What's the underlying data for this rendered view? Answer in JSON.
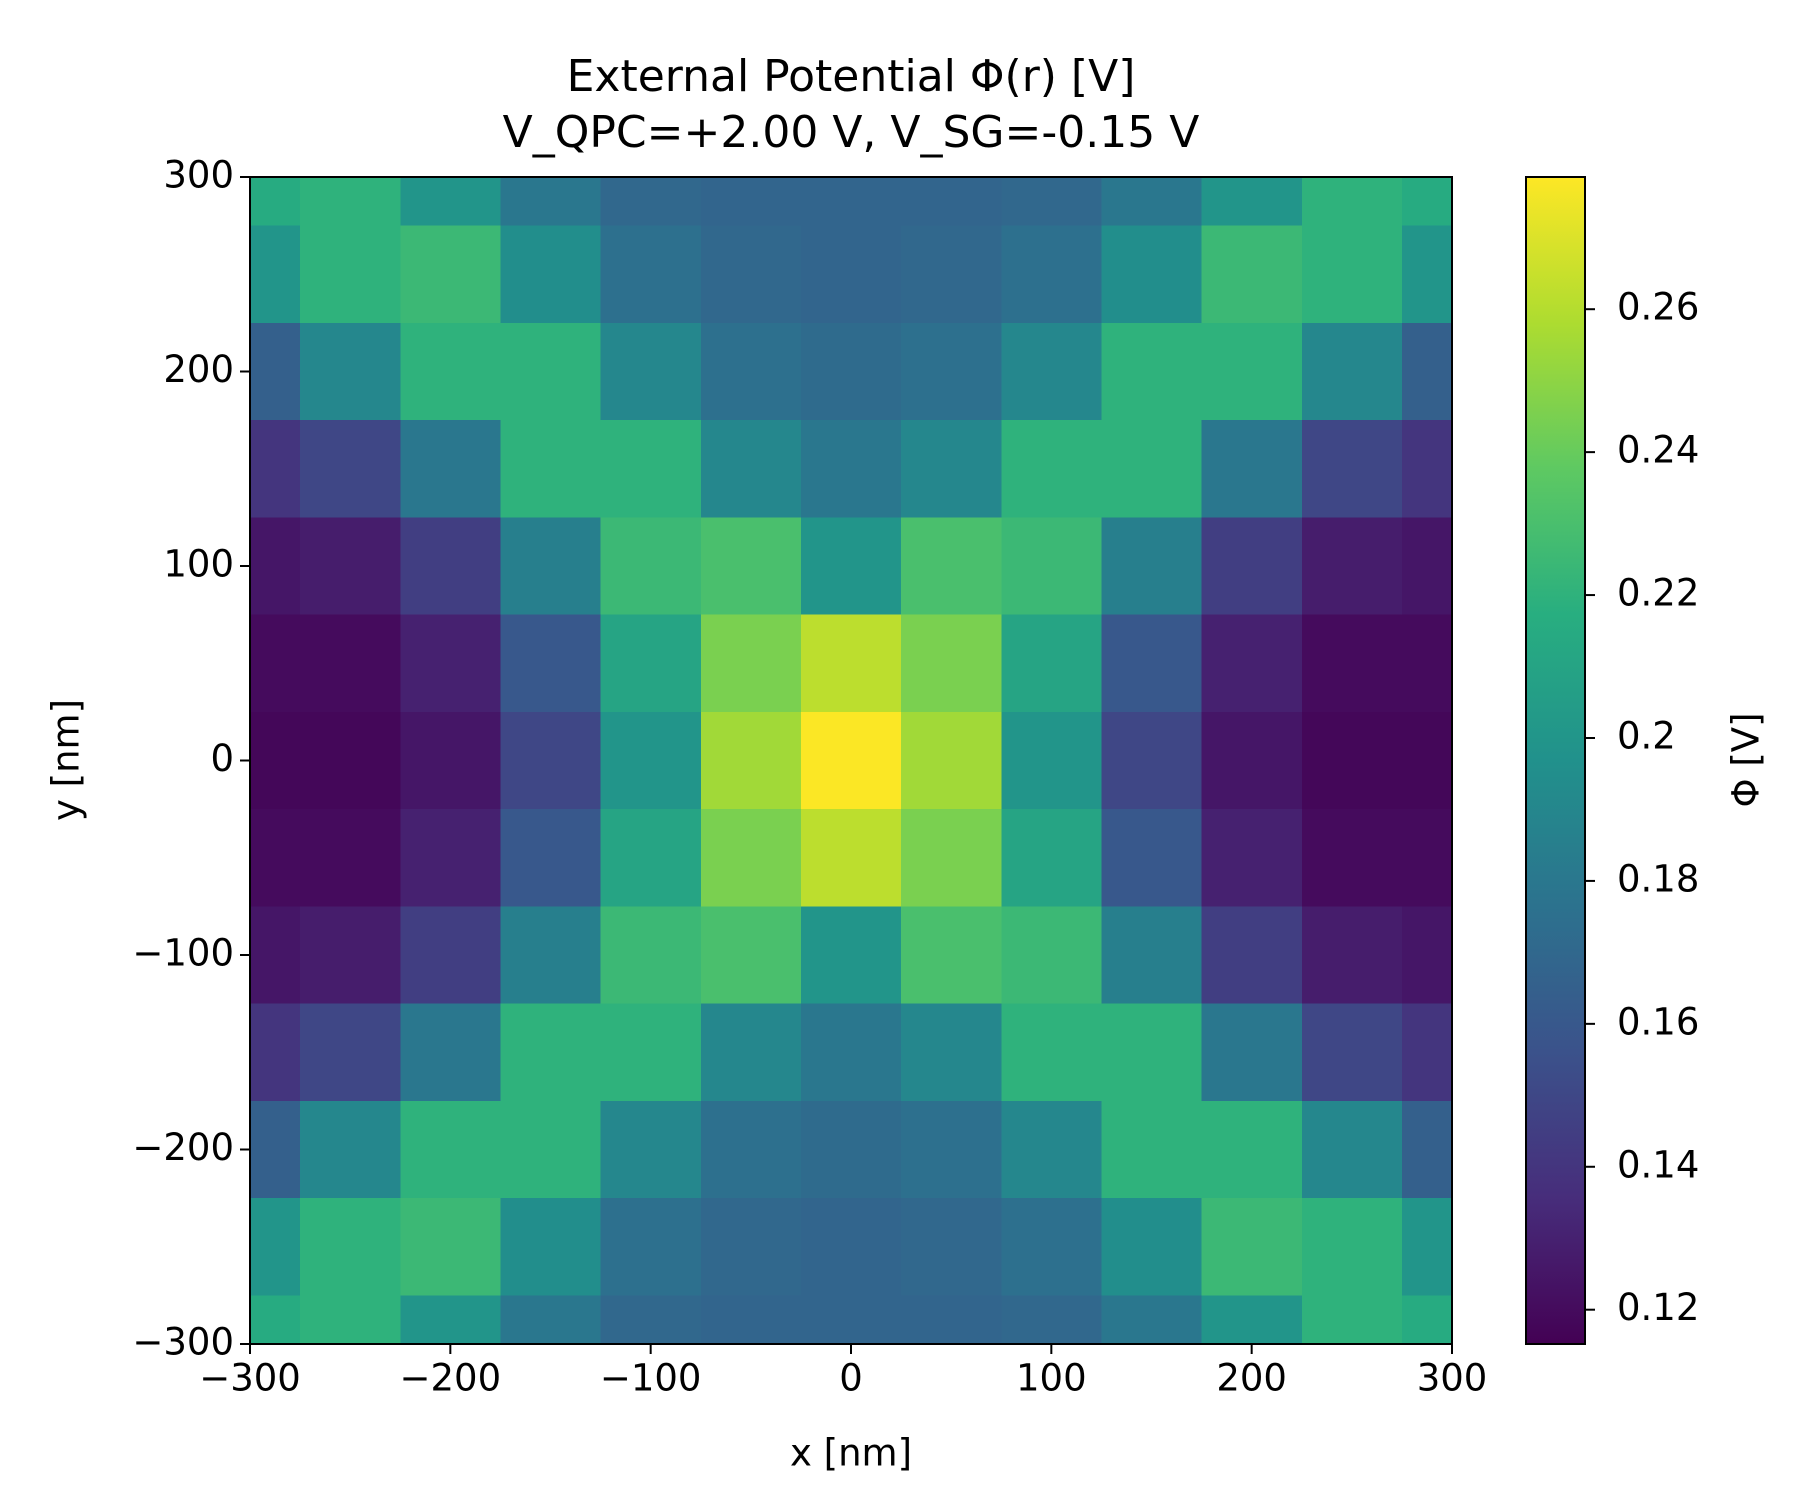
{
  "chart_data": {
    "type": "heatmap",
    "title": "External Potential Φ(r) [V]",
    "subtitle": "V_QPC=+2.00 V, V_SG=-0.15 V",
    "x_label": "x [nm]",
    "y_label": "y [nm]",
    "colorbar_label": "Φ [V]",
    "x": [
      -300,
      -250,
      -200,
      -150,
      -100,
      -50,
      0,
      50,
      100,
      150,
      200,
      250,
      300
    ],
    "y": [
      300,
      250,
      200,
      150,
      100,
      50,
      0,
      -50,
      -100,
      -150,
      -200,
      -250,
      -300
    ],
    "z": [
      [
        0.215,
        0.22,
        0.2,
        0.18,
        0.17,
        0.168,
        0.168,
        0.168,
        0.17,
        0.18,
        0.2,
        0.22,
        0.215
      ],
      [
        0.2,
        0.22,
        0.225,
        0.195,
        0.175,
        0.17,
        0.168,
        0.17,
        0.175,
        0.195,
        0.225,
        0.22,
        0.2
      ],
      [
        0.165,
        0.19,
        0.22,
        0.22,
        0.19,
        0.175,
        0.172,
        0.175,
        0.19,
        0.22,
        0.22,
        0.19,
        0.165
      ],
      [
        0.14,
        0.15,
        0.18,
        0.22,
        0.22,
        0.19,
        0.18,
        0.19,
        0.22,
        0.22,
        0.18,
        0.15,
        0.14
      ],
      [
        0.125,
        0.128,
        0.145,
        0.185,
        0.225,
        0.23,
        0.2,
        0.23,
        0.225,
        0.185,
        0.145,
        0.128,
        0.125
      ],
      [
        0.12,
        0.12,
        0.13,
        0.16,
        0.21,
        0.245,
        0.262,
        0.245,
        0.21,
        0.16,
        0.13,
        0.12,
        0.12
      ],
      [
        0.118,
        0.118,
        0.125,
        0.15,
        0.2,
        0.255,
        0.278,
        0.255,
        0.2,
        0.15,
        0.125,
        0.118,
        0.118
      ],
      [
        0.12,
        0.12,
        0.13,
        0.16,
        0.21,
        0.245,
        0.262,
        0.245,
        0.21,
        0.16,
        0.13,
        0.12,
        0.12
      ],
      [
        0.125,
        0.128,
        0.145,
        0.185,
        0.225,
        0.23,
        0.2,
        0.23,
        0.225,
        0.185,
        0.145,
        0.128,
        0.125
      ],
      [
        0.14,
        0.15,
        0.18,
        0.22,
        0.22,
        0.19,
        0.18,
        0.19,
        0.22,
        0.22,
        0.18,
        0.15,
        0.14
      ],
      [
        0.165,
        0.19,
        0.22,
        0.22,
        0.19,
        0.175,
        0.172,
        0.175,
        0.19,
        0.22,
        0.22,
        0.19,
        0.165
      ],
      [
        0.2,
        0.22,
        0.225,
        0.195,
        0.175,
        0.17,
        0.168,
        0.17,
        0.175,
        0.195,
        0.225,
        0.22,
        0.2
      ],
      [
        0.215,
        0.22,
        0.2,
        0.18,
        0.17,
        0.168,
        0.168,
        0.168,
        0.17,
        0.18,
        0.2,
        0.22,
        0.215
      ]
    ],
    "xlim": [
      -300,
      300
    ],
    "ylim": [
      -300,
      300
    ],
    "xticks": [
      {
        "value": -300,
        "label": "−300"
      },
      {
        "value": -200,
        "label": "−200"
      },
      {
        "value": -100,
        "label": "−100"
      },
      0,
      100,
      200,
      300
    ],
    "yticks": [
      {
        "value": -300,
        "label": "−300"
      },
      {
        "value": -200,
        "label": "−200"
      },
      {
        "value": -100,
        "label": "−100"
      },
      0,
      100,
      200,
      300
    ],
    "clim": [
      0.1152,
      0.2785
    ],
    "cticks": [
      0.12,
      0.14,
      0.16,
      0.18,
      0.2,
      0.22,
      0.24,
      0.26
    ],
    "colormap": [
      "#440154",
      "#472d7b",
      "#3b528b",
      "#2c728e",
      "#21918c",
      "#28ae80",
      "#5ec962",
      "#addc30",
      "#fde725"
    ]
  }
}
